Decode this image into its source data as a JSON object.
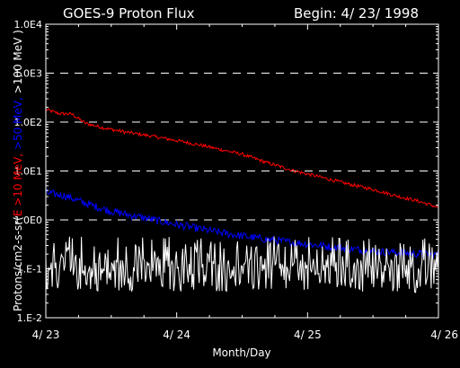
{
  "chart_data": {
    "type": "line",
    "title": "GOES-9 Proton Flux",
    "begin_label": "Begin: 4/ 23/ 1998",
    "xlabel": "Month/Day",
    "ylabel_parts": [
      {
        "text": "Protons/cm2-s-sr(",
        "color": "#ffffff"
      },
      {
        "text": "E >10 MeV, ",
        "color": "#ff0000"
      },
      {
        "text": ">50 MeV, ",
        "color": "#0000ff"
      },
      {
        "text": ">100 MeV )",
        "color": "#ffffff"
      }
    ],
    "y_scale": "log",
    "ylim": [
      0.01,
      10000
    ],
    "xlim": [
      23,
      26
    ],
    "x_ticks": [
      {
        "value": 23,
        "label": "4/ 23"
      },
      {
        "value": 24,
        "label": "4/ 24"
      },
      {
        "value": 25,
        "label": "4/ 25"
      },
      {
        "value": 26,
        "label": "4/ 26"
      }
    ],
    "y_ticks": [
      {
        "value": 10000,
        "label": "1.0E4"
      },
      {
        "value": 1000,
        "label": "1.0E3"
      },
      {
        "value": 100,
        "label": "1.0E2"
      },
      {
        "value": 10,
        "label": "1.0E1"
      },
      {
        "value": 1,
        "label": "1.0E0"
      },
      {
        "value": 0.1,
        "label": "1.E-1"
      },
      {
        "value": 0.01,
        "label": "1.E-2"
      }
    ],
    "gridlines_y": [
      1000,
      100,
      10,
      1
    ],
    "grid_style": "dashed",
    "series": [
      {
        "name": ">10 MeV",
        "color": "#ff0000",
        "noise_decades": 0.035,
        "x": [
          23.0,
          23.1,
          23.2,
          23.3,
          23.45,
          23.6,
          23.8,
          24.0,
          24.2,
          24.5,
          24.7,
          24.9,
          25.1,
          25.3,
          25.5,
          25.7,
          25.85,
          26.0
        ],
        "y": [
          180,
          150,
          145,
          95,
          75,
          63,
          52,
          42,
          33,
          22,
          14.5,
          10,
          7.5,
          5.5,
          4.2,
          3.0,
          2.4,
          1.8
        ]
      },
      {
        "name": ">50 MeV",
        "color": "#0000ff",
        "noise_decades": 0.08,
        "x": [
          23.0,
          23.15,
          23.3,
          23.5,
          23.75,
          24.0,
          24.25,
          24.5,
          24.75,
          25.0,
          25.25,
          25.5,
          25.75,
          26.0
        ],
        "y": [
          3.6,
          3.1,
          2.2,
          1.5,
          1.1,
          0.8,
          0.6,
          0.47,
          0.38,
          0.32,
          0.27,
          0.23,
          0.21,
          0.19
        ]
      },
      {
        "name": ">100 MeV",
        "color": "#ffffff",
        "noise_decades": 0.35,
        "x": [
          23.0,
          24.0,
          25.0,
          26.0
        ],
        "y": [
          0.08,
          0.075,
          0.072,
          0.07
        ]
      }
    ]
  }
}
